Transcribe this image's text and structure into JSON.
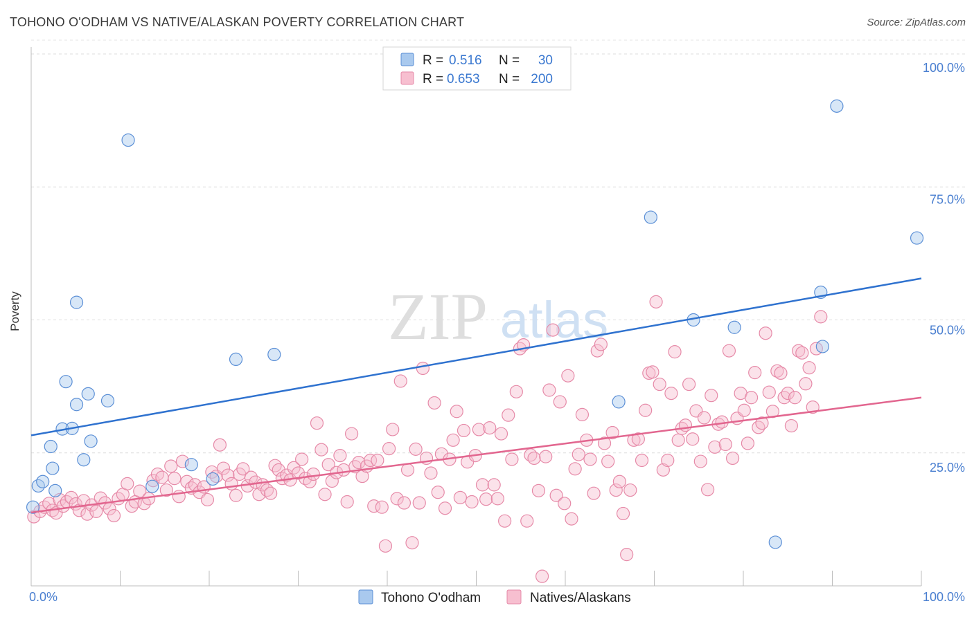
{
  "header": {
    "title": "TOHONO O'ODHAM VS NATIVE/ALASKAN POVERTY CORRELATION CHART",
    "source": "Source: ZipAtlas.com"
  },
  "watermark": {
    "zip": "ZIP",
    "atlas": "atlas"
  },
  "legend_box": {
    "rows": [
      {
        "r_label": "R =",
        "r_value": "0.516",
        "n_label": "N =",
        "n_value": "30",
        "color": "#a9c9ee",
        "edge": "#5b8fd6"
      },
      {
        "r_label": "R =",
        "r_value": "0.653",
        "n_label": "N =",
        "n_value": "200",
        "color": "#f7bfd0",
        "edge": "#e68aa8"
      }
    ]
  },
  "bottom_legend": [
    {
      "label": "Tohono O'odham",
      "color": "#a9c9ee",
      "edge": "#5b8fd6"
    },
    {
      "label": "Natives/Alaskans",
      "color": "#f7bfd0",
      "edge": "#e68aa8"
    }
  ],
  "chart_data": {
    "type": "scatter",
    "title": "TOHONO O'ODHAM VS NATIVE/ALASKAN POVERTY CORRELATION CHART",
    "xlabel": "",
    "ylabel": "Poverty",
    "xlim": [
      0,
      100
    ],
    "ylim": [
      0,
      100
    ],
    "x_tick_labels": [
      "0.0%",
      "100.0%"
    ],
    "y_tick_labels": [
      "25.0%",
      "50.0%",
      "75.0%",
      "100.0%"
    ],
    "y_tick_values": [
      25,
      50,
      75,
      100
    ],
    "grid": true,
    "colors": {
      "blue": "#3a78d0",
      "pink": "#e2668f",
      "tick_text": "#4a7fd0"
    },
    "series": [
      {
        "name": "Tohono O'odham",
        "color": "#a9c9ee",
        "edge": "#5b8fd6",
        "trend": {
          "x": [
            0,
            100
          ],
          "y": [
            28.3,
            57.8
          ],
          "color": "#2f72cf"
        },
        "points": [
          [
            0.2,
            14.8
          ],
          [
            0.8,
            18.8
          ],
          [
            1.3,
            19.6
          ],
          [
            2.2,
            26.2
          ],
          [
            2.4,
            22.1
          ],
          [
            2.7,
            17.9
          ],
          [
            3.5,
            29.5
          ],
          [
            3.9,
            38.4
          ],
          [
            4.6,
            29.6
          ],
          [
            5.1,
            34.1
          ],
          [
            5.1,
            53.3
          ],
          [
            5.9,
            23.7
          ],
          [
            6.4,
            36.1
          ],
          [
            6.7,
            27.2
          ],
          [
            8.6,
            34.8
          ],
          [
            10.9,
            83.8
          ],
          [
            13.6,
            18.7
          ],
          [
            18.0,
            22.8
          ],
          [
            20.4,
            20.1
          ],
          [
            23.0,
            42.6
          ],
          [
            27.3,
            43.5
          ],
          [
            66.0,
            34.6
          ],
          [
            69.6,
            69.3
          ],
          [
            74.4,
            50.0
          ],
          [
            79.0,
            48.6
          ],
          [
            83.6,
            8.2
          ],
          [
            88.7,
            55.2
          ],
          [
            88.9,
            45.0
          ],
          [
            90.5,
            90.2
          ],
          [
            99.5,
            65.4
          ]
        ]
      },
      {
        "name": "Natives/Alaskans",
        "color": "#f7bfd0",
        "edge": "#e68aa8",
        "trend": {
          "x": [
            0,
            100
          ],
          "y": [
            13.8,
            35.4
          ],
          "color": "#e2668f"
        },
        "points": [
          [
            0.3,
            13.0
          ],
          [
            1.0,
            14.0
          ],
          [
            1.5,
            14.8
          ],
          [
            2.0,
            15.5
          ],
          [
            2.4,
            14.2
          ],
          [
            2.8,
            13.7
          ],
          [
            3.2,
            16.2
          ],
          [
            3.6,
            15.0
          ],
          [
            4.0,
            15.8
          ],
          [
            4.5,
            16.6
          ],
          [
            5.0,
            15.4
          ],
          [
            5.4,
            14.2
          ],
          [
            5.9,
            16.0
          ],
          [
            6.3,
            13.5
          ],
          [
            6.8,
            15.2
          ],
          [
            7.3,
            14.0
          ],
          [
            7.8,
            16.5
          ],
          [
            8.3,
            15.6
          ],
          [
            8.8,
            14.5
          ],
          [
            9.3,
            13.2
          ],
          [
            9.8,
            16.4
          ],
          [
            10.3,
            17.2
          ],
          [
            10.8,
            19.2
          ],
          [
            11.3,
            15.0
          ],
          [
            11.7,
            15.8
          ],
          [
            12.2,
            17.8
          ],
          [
            12.7,
            15.5
          ],
          [
            13.2,
            16.4
          ],
          [
            13.7,
            19.8
          ],
          [
            14.2,
            21.0
          ],
          [
            14.7,
            20.4
          ],
          [
            15.2,
            18.0
          ],
          [
            15.7,
            22.5
          ],
          [
            16.1,
            20.2
          ],
          [
            16.6,
            16.8
          ],
          [
            17.0,
            23.4
          ],
          [
            17.5,
            19.6
          ],
          [
            18.0,
            18.4
          ],
          [
            18.4,
            19.0
          ],
          [
            18.9,
            17.6
          ],
          [
            19.4,
            18.6
          ],
          [
            19.8,
            16.2
          ],
          [
            20.3,
            21.4
          ],
          [
            20.8,
            20.6
          ],
          [
            21.2,
            26.5
          ],
          [
            21.6,
            22.1
          ],
          [
            22.1,
            20.8
          ],
          [
            22.5,
            19.2
          ],
          [
            23.0,
            17.0
          ],
          [
            23.4,
            21.0
          ],
          [
            23.8,
            22.0
          ],
          [
            24.3,
            18.8
          ],
          [
            24.7,
            20.4
          ],
          [
            25.2,
            19.5
          ],
          [
            25.6,
            17.2
          ],
          [
            26.0,
            19.0
          ],
          [
            26.5,
            18.0
          ],
          [
            26.9,
            17.4
          ],
          [
            27.4,
            22.6
          ],
          [
            27.8,
            21.8
          ],
          [
            28.2,
            20.2
          ],
          [
            28.7,
            20.8
          ],
          [
            29.1,
            19.9
          ],
          [
            29.5,
            22.2
          ],
          [
            30.0,
            21.2
          ],
          [
            30.4,
            23.8
          ],
          [
            30.8,
            20.2
          ],
          [
            31.3,
            19.6
          ],
          [
            31.7,
            21.0
          ],
          [
            32.1,
            30.6
          ],
          [
            32.6,
            25.6
          ],
          [
            33.0,
            17.2
          ],
          [
            33.4,
            22.8
          ],
          [
            33.8,
            19.7
          ],
          [
            34.3,
            21.3
          ],
          [
            34.7,
            24.5
          ],
          [
            35.1,
            21.8
          ],
          [
            35.5,
            15.8
          ],
          [
            36.0,
            28.6
          ],
          [
            36.4,
            22.4
          ],
          [
            36.8,
            23.2
          ],
          [
            37.2,
            20.6
          ],
          [
            37.7,
            22.5
          ],
          [
            38.1,
            23.6
          ],
          [
            38.5,
            15.0
          ],
          [
            38.9,
            23.6
          ],
          [
            39.4,
            14.8
          ],
          [
            39.8,
            7.5
          ],
          [
            40.2,
            25.8
          ],
          [
            40.6,
            29.4
          ],
          [
            41.1,
            16.4
          ],
          [
            41.5,
            38.5
          ],
          [
            41.9,
            15.6
          ],
          [
            42.3,
            21.8
          ],
          [
            42.8,
            8.1
          ],
          [
            43.2,
            25.7
          ],
          [
            43.6,
            15.6
          ],
          [
            44.0,
            40.9
          ],
          [
            44.4,
            24.0
          ],
          [
            44.9,
            21.2
          ],
          [
            45.3,
            34.4
          ],
          [
            45.7,
            17.6
          ],
          [
            46.1,
            24.8
          ],
          [
            46.5,
            14.6
          ],
          [
            47.0,
            23.8
          ],
          [
            47.4,
            27.4
          ],
          [
            47.8,
            32.8
          ],
          [
            48.2,
            16.6
          ],
          [
            48.6,
            29.2
          ],
          [
            49.0,
            23.3
          ],
          [
            49.5,
            15.8
          ],
          [
            49.9,
            24.5
          ],
          [
            50.3,
            29.4
          ],
          [
            50.7,
            19.0
          ],
          [
            51.1,
            16.3
          ],
          [
            51.5,
            29.7
          ],
          [
            52.0,
            19.0
          ],
          [
            52.4,
            16.4
          ],
          [
            52.8,
            28.6
          ],
          [
            53.2,
            12.2
          ],
          [
            53.6,
            32.1
          ],
          [
            54.0,
            23.8
          ],
          [
            54.5,
            36.5
          ],
          [
            54.9,
            44.6
          ],
          [
            55.3,
            45.3
          ],
          [
            55.7,
            12.2
          ],
          [
            56.1,
            24.6
          ],
          [
            56.5,
            24.0
          ],
          [
            57.0,
            17.9
          ],
          [
            57.4,
            1.8
          ],
          [
            57.8,
            24.3
          ],
          [
            58.2,
            36.8
          ],
          [
            58.6,
            48.1
          ],
          [
            59.0,
            17.0
          ],
          [
            59.4,
            34.6
          ],
          [
            59.9,
            15.5
          ],
          [
            60.3,
            39.5
          ],
          [
            60.7,
            12.6
          ],
          [
            61.1,
            22.0
          ],
          [
            61.5,
            24.7
          ],
          [
            61.9,
            32.2
          ],
          [
            62.4,
            27.4
          ],
          [
            62.8,
            23.8
          ],
          [
            63.2,
            17.4
          ],
          [
            63.6,
            44.2
          ],
          [
            64.0,
            45.4
          ],
          [
            64.4,
            26.8
          ],
          [
            64.8,
            23.4
          ],
          [
            65.3,
            28.8
          ],
          [
            65.7,
            18.0
          ],
          [
            66.1,
            19.6
          ],
          [
            66.5,
            13.6
          ],
          [
            66.9,
            5.9
          ],
          [
            67.3,
            18.0
          ],
          [
            67.7,
            27.4
          ],
          [
            68.2,
            27.6
          ],
          [
            68.6,
            23.6
          ],
          [
            69.0,
            33.0
          ],
          [
            69.4,
            40.0
          ],
          [
            69.8,
            40.2
          ],
          [
            70.2,
            53.4
          ],
          [
            70.6,
            37.9
          ],
          [
            71.0,
            21.8
          ],
          [
            71.5,
            23.6
          ],
          [
            71.9,
            36.2
          ],
          [
            72.3,
            44.0
          ],
          [
            72.7,
            27.4
          ],
          [
            73.1,
            29.6
          ],
          [
            73.5,
            30.2
          ],
          [
            73.9,
            37.9
          ],
          [
            74.3,
            27.6
          ],
          [
            74.7,
            32.9
          ],
          [
            75.2,
            23.4
          ],
          [
            75.6,
            31.6
          ],
          [
            76.0,
            18.1
          ],
          [
            76.4,
            35.8
          ],
          [
            76.8,
            26.1
          ],
          [
            77.2,
            30.4
          ],
          [
            77.6,
            30.8
          ],
          [
            78.0,
            26.6
          ],
          [
            78.4,
            44.2
          ],
          [
            78.8,
            24.0
          ],
          [
            79.3,
            31.5
          ],
          [
            79.7,
            36.2
          ],
          [
            80.1,
            33.0
          ],
          [
            80.5,
            26.8
          ],
          [
            80.9,
            35.4
          ],
          [
            81.3,
            40.1
          ],
          [
            81.7,
            29.8
          ],
          [
            82.1,
            30.6
          ],
          [
            82.5,
            47.5
          ],
          [
            82.9,
            36.4
          ],
          [
            83.3,
            32.8
          ],
          [
            83.8,
            40.4
          ],
          [
            84.2,
            40.0
          ],
          [
            84.6,
            35.4
          ],
          [
            85.0,
            36.2
          ],
          [
            85.4,
            30.1
          ],
          [
            85.8,
            35.4
          ],
          [
            86.2,
            44.2
          ],
          [
            86.6,
            43.8
          ],
          [
            87.0,
            38.0
          ],
          [
            87.4,
            41.0
          ],
          [
            87.8,
            33.6
          ],
          [
            88.2,
            44.6
          ],
          [
            88.7,
            50.6
          ]
        ]
      }
    ]
  }
}
